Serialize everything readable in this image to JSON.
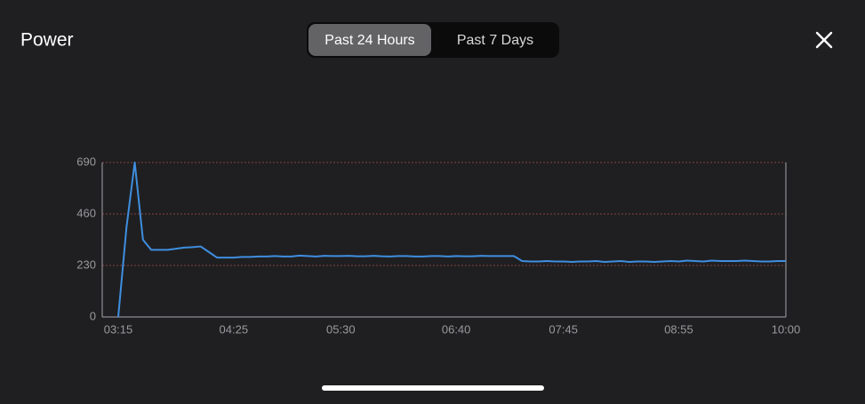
{
  "header": {
    "title": "Power",
    "tabs": [
      "Past 24 Hours",
      "Past 7 Days"
    ]
  },
  "chart_data": {
    "type": "line",
    "categories": [
      "03:15",
      null,
      null,
      null,
      null,
      null,
      null,
      null,
      null,
      null,
      null,
      null,
      null,
      null,
      "04:25",
      null,
      null,
      null,
      null,
      null,
      null,
      null,
      null,
      null,
      null,
      null,
      null,
      "05:30",
      null,
      null,
      null,
      null,
      null,
      null,
      null,
      null,
      null,
      null,
      null,
      null,
      null,
      "06:40",
      null,
      null,
      null,
      null,
      null,
      null,
      null,
      null,
      null,
      null,
      null,
      null,
      "07:45",
      null,
      null,
      null,
      null,
      null,
      null,
      null,
      null,
      null,
      null,
      null,
      null,
      null,
      "08:55",
      null,
      null,
      null,
      null,
      null,
      null,
      null,
      null,
      null,
      null,
      null,
      null,
      "10:00"
    ],
    "series": [
      {
        "color": "#3f8ee0",
        "values": [
          0,
          400,
          690,
          345,
          300,
          300,
          300,
          305,
          310,
          312,
          315,
          290,
          265,
          265,
          265,
          268,
          268,
          270,
          270,
          272,
          270,
          270,
          274,
          272,
          270,
          273,
          272,
          272,
          273,
          271,
          271,
          273,
          271,
          270,
          272,
          272,
          270,
          270,
          272,
          272,
          270,
          272,
          271,
          271,
          273,
          272,
          272,
          272,
          272,
          250,
          248,
          248,
          250,
          248,
          248,
          246,
          248,
          248,
          250,
          246,
          248,
          250,
          246,
          248,
          248,
          246,
          248,
          250,
          248,
          252,
          250,
          248,
          252,
          250,
          250,
          250,
          252,
          250,
          248,
          248,
          250,
          250
        ]
      }
    ],
    "ylim": [
      0,
      690
    ],
    "yticks": [
      0,
      230,
      460,
      690
    ],
    "grid": true
  }
}
